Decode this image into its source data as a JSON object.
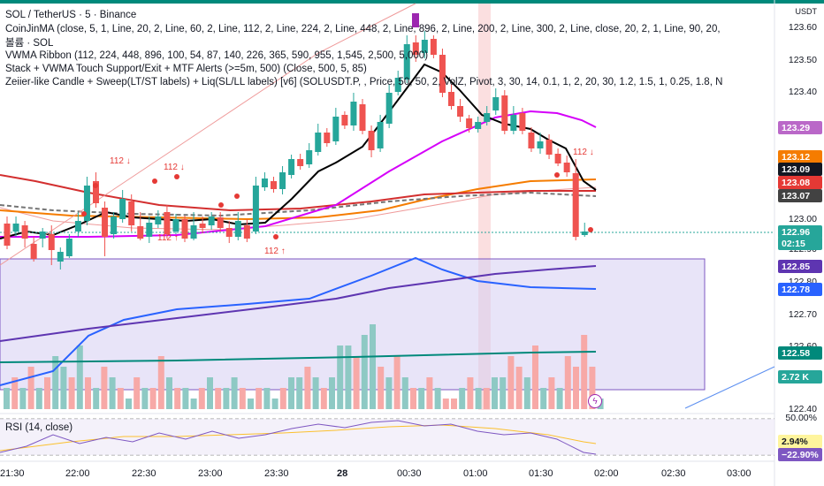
{
  "legend": {
    "line1": "SOL / TetherUS · 5 · Binance",
    "line2": "CoinJinMA (close, 5, 1, Line, 20, 2, Line, 60, 2, Line, 112, 2, Line, 224, 2, Line, 448, 2, Line, 896, 2, Line, 200, 2, Line, 300, 2, Line, close, 20, 2, 1, Line, 90, 20,",
    "line3": "볼륨 · SOL",
    "line4": "VWMA Ribbon (112, 224, 448, 896, 100, 54, 87, 140, 226, 365, 590, 955, 1,545, 2,500, 5,000)",
    "line5": "Stack + VWMA Touch Support/Exit + MTF Alerts (>=5m, 500) (Close, 500, 5, 85)",
    "line6": "Zeiier-like Candle + Sweep(LT/ST labels) + Liq(SL/LL labels) [v6] (SOLUSDT.P, , Price, 50, 50, 2, VolZ, Pivot, 3, 30, 14, 0.1, 1, 2, 20, 30, 1.2, 1.5, 1, 0.25, 1.8, N"
  },
  "price_axis": {
    "currency": "USDT",
    "ticks": [
      "123.60",
      "123.50",
      "123.40",
      "123.00",
      "122.90",
      "122.80",
      "122.70",
      "122.60",
      "122.40"
    ],
    "badges": [
      {
        "text": "123.29",
        "color": "#ba68c8"
      },
      {
        "text": "123.12",
        "color": "#f57c00"
      },
      {
        "text": "123.09",
        "color": "#131722"
      },
      {
        "text": "123.08",
        "color": "#e53935"
      },
      {
        "text": "123.07",
        "color": "#424242"
      },
      {
        "text": "122.96",
        "color": "#26a69a"
      },
      {
        "text": "02:15",
        "color": "#26a69a"
      },
      {
        "text": "122.85",
        "color": "#5e35b1"
      },
      {
        "text": "122.78",
        "color": "#2962ff"
      },
      {
        "text": "122.58",
        "color": "#00897b"
      },
      {
        "text": "2.72 K",
        "color": "#26a69a"
      }
    ]
  },
  "signals": [
    "112 ↓",
    "112 ↓",
    "112 ↓",
    "112 ↑",
    "112 ↑"
  ],
  "rsi": {
    "label": "RSI (14, close)",
    "ticks": [
      "50.00%"
    ],
    "badges": [
      {
        "text": "2.94%",
        "color": "#fff59d",
        "text_color": "#131722"
      },
      {
        "text": "−22.90%",
        "color": "#7e57c2",
        "text_color": "#ffffff"
      }
    ]
  },
  "time_axis": [
    "21:30",
    "22:00",
    "22:30",
    "23:00",
    "23:30",
    "28",
    "00:30",
    "01:00",
    "01:30",
    "02:00",
    "02:30",
    "03:00"
  ],
  "colors": {
    "up": "#26a69a",
    "down": "#ef5350",
    "up_volume": "#8ec9c4",
    "down_volume": "#f7a9a7",
    "ribbon_fill": "#d6cdf2"
  }
}
